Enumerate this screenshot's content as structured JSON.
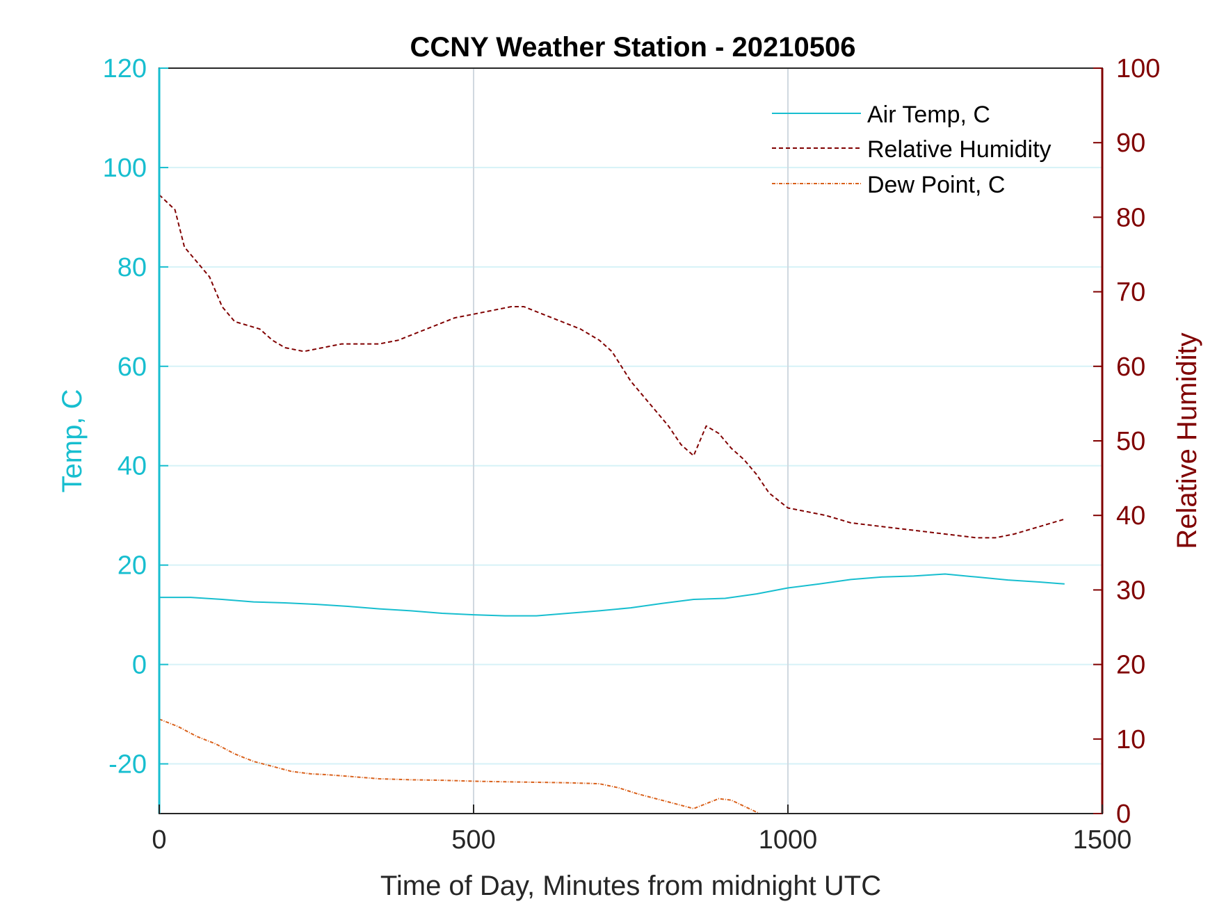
{
  "chart_data": {
    "type": "line",
    "title": "CCNY Weather Station - 20210506",
    "xlabel": "Time of Day, Minutes from midnight UTC",
    "ylabel_left": "Temp, C",
    "ylabel_right": "Relative Humidity",
    "xlim": [
      0,
      1500
    ],
    "ylim_left": [
      -30,
      120
    ],
    "ylim_right": [
      0,
      100
    ],
    "xticks": [
      0,
      500,
      1000,
      1500
    ],
    "yticks_left": [
      -20,
      0,
      20,
      40,
      60,
      80,
      100,
      120
    ],
    "yticks_right": [
      0,
      10,
      20,
      30,
      40,
      50,
      60,
      70,
      80,
      90,
      100
    ],
    "grid": true,
    "legend_position": "top-right",
    "colors": {
      "left_axis": "#17BECF",
      "right_axis": "#800000",
      "dew_point": "#D9601A",
      "grid_h": "#D6F2F7",
      "grid_v": "#D0D8E0"
    },
    "series": [
      {
        "name": "Air Temp, C",
        "axis": "left",
        "style": "solid",
        "color": "#17BECF",
        "x": [
          0,
          50,
          100,
          150,
          200,
          250,
          300,
          350,
          400,
          450,
          500,
          550,
          600,
          650,
          700,
          750,
          800,
          850,
          900,
          950,
          1000,
          1050,
          1100,
          1150,
          1200,
          1250,
          1300,
          1350,
          1400,
          1440
        ],
        "y": [
          13.5,
          13.5,
          13.1,
          12.6,
          12.4,
          12.1,
          11.7,
          11.2,
          10.8,
          10.3,
          10.0,
          9.8,
          9.8,
          10.3,
          10.8,
          11.4,
          12.3,
          13.1,
          13.3,
          14.2,
          15.4,
          16.2,
          17.1,
          17.6,
          17.8,
          18.2,
          17.6,
          17.0,
          16.6,
          16.2
        ]
      },
      {
        "name": "Relative Humidity",
        "axis": "right",
        "style": "dashed",
        "color": "#800000",
        "x": [
          0,
          25,
          40,
          60,
          80,
          100,
          120,
          140,
          160,
          180,
          200,
          230,
          260,
          290,
          320,
          350,
          380,
          410,
          440,
          470,
          500,
          530,
          560,
          580,
          610,
          640,
          670,
          700,
          720,
          750,
          780,
          810,
          830,
          850,
          870,
          890,
          910,
          930,
          950,
          970,
          1000,
          1030,
          1060,
          1100,
          1150,
          1200,
          1250,
          1300,
          1330,
          1360,
          1400,
          1440
        ],
        "y": [
          83,
          81,
          76,
          74,
          72,
          68,
          66,
          65.5,
          65,
          63.5,
          62.5,
          62,
          62.5,
          63,
          63,
          63,
          63.5,
          64.5,
          65.5,
          66.5,
          67,
          67.5,
          68,
          68,
          67,
          66,
          65,
          63.5,
          62,
          58,
          55,
          52,
          49.5,
          48,
          52,
          51,
          49,
          47.5,
          45.5,
          43,
          41,
          40.5,
          40,
          39,
          38.5,
          38,
          37.5,
          37,
          37,
          37.5,
          38.5,
          39.5
        ]
      },
      {
        "name": "Dew Point, C",
        "axis": "left",
        "style": "dash-dot",
        "color": "#D9601A",
        "x": [
          0,
          30,
          60,
          90,
          120,
          150,
          180,
          210,
          240,
          270,
          300,
          350,
          400,
          450,
          500,
          550,
          600,
          650,
          700,
          730,
          760,
          790,
          820,
          850,
          870,
          890,
          910,
          930,
          955
        ],
        "y": [
          -11,
          -12.5,
          -14.5,
          -16,
          -18,
          -19.5,
          -20.5,
          -21.5,
          -22,
          -22.2,
          -22.5,
          -23,
          -23.2,
          -23.3,
          -23.5,
          -23.6,
          -23.7,
          -23.8,
          -24,
          -24.8,
          -26,
          -27,
          -28,
          -29,
          -28,
          -27,
          -27.3,
          -28.5,
          -30
        ]
      }
    ]
  }
}
